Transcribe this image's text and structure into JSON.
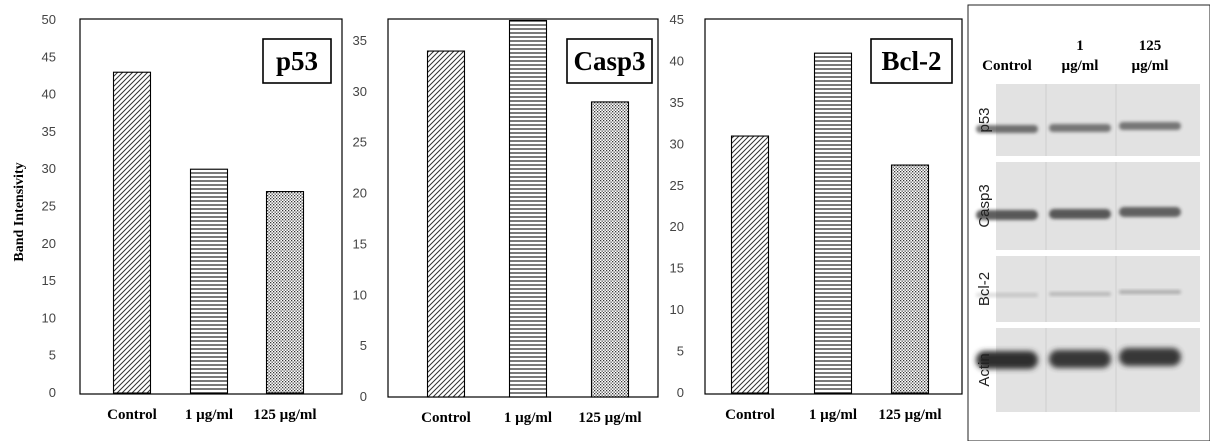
{
  "colors": {
    "bar_stroke": "#000000",
    "hatch": "#333333",
    "title_box": "#000000",
    "blot_bg": "#e2e2e2",
    "band": "#2e2e2e"
  },
  "chart_data": [
    {
      "type": "bar",
      "title": "p53",
      "ylabel": "Band Intensivity",
      "xlabel": "",
      "categories": [
        "Control",
        "1 µg/ml",
        "125 µg/ml"
      ],
      "values": [
        43,
        30,
        27
      ],
      "ylim": [
        0,
        50
      ],
      "yticks": [
        0,
        5,
        10,
        15,
        20,
        25,
        30,
        35,
        40,
        45,
        50
      ],
      "patterns": [
        "diagonal",
        "horizontal",
        "dots"
      ],
      "grid": false,
      "legend": "none"
    },
    {
      "type": "bar",
      "title": "Casp3",
      "ylabel": "",
      "xlabel": "",
      "categories": [
        "Control",
        "1 µg/ml",
        "125 µg/ml"
      ],
      "values": [
        34,
        37,
        29
      ],
      "ylim": [
        0,
        40
      ],
      "yticks": [
        0,
        5,
        10,
        15,
        20,
        25,
        30,
        35
      ],
      "patterns": [
        "diagonal",
        "horizontal",
        "dots"
      ],
      "grid": false,
      "legend": "none"
    },
    {
      "type": "bar",
      "title": "Bcl-2",
      "ylabel": "",
      "xlabel": "",
      "categories": [
        "Control",
        "1 µg/ml",
        "125 µg/ml"
      ],
      "values": [
        31,
        41,
        27.5
      ],
      "ylim": [
        0,
        45
      ],
      "yticks": [
        0,
        5,
        10,
        15,
        20,
        25,
        30,
        35,
        40,
        45
      ],
      "patterns": [
        "diagonal",
        "horizontal",
        "dots"
      ],
      "grid": false,
      "legend": "none"
    }
  ],
  "blot": {
    "columns": [
      {
        "lines": [
          "Control"
        ]
      },
      {
        "lines": [
          "1",
          "µg/ml"
        ]
      },
      {
        "lines": [
          "125",
          "µg/ml"
        ]
      }
    ],
    "rows": [
      "p53",
      "Casp3",
      "Bcl-2",
      "Actin"
    ]
  }
}
